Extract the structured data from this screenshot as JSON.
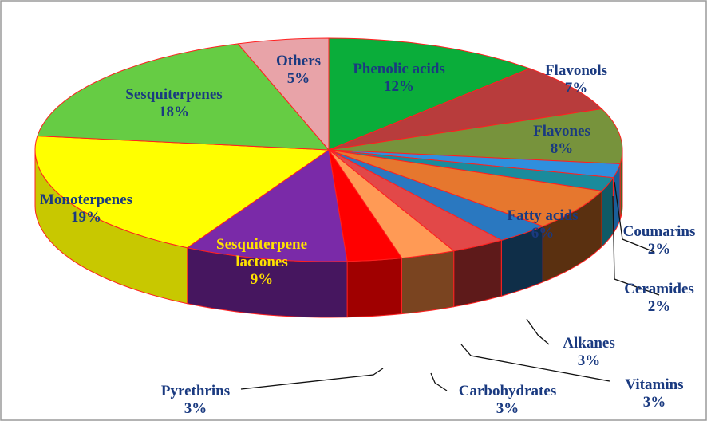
{
  "chart_data": {
    "type": "pie",
    "title": "",
    "style": "3d-exploded-perspective",
    "slices": [
      {
        "label": "Phenolic acids",
        "value": 12,
        "value_label": "12%",
        "color": "#0aad3a",
        "side": "#077a28",
        "label_color": "#1a3a80"
      },
      {
        "label": "Flavonols",
        "value": 7,
        "value_label": "7%",
        "color": "#b83c3c",
        "side": "#7e2424",
        "label_color": "#1a3a80"
      },
      {
        "label": "Flavones",
        "value": 8,
        "value_label": "8%",
        "color": "#77933c",
        "side": "#4e6226",
        "label_color": "#1a3a80"
      },
      {
        "label": "Coumarins",
        "value": 2,
        "value_label": "2%",
        "color": "#2f8fde",
        "side": "#1b5e99",
        "label_color": "#1a3a80"
      },
      {
        "label": "Ceramides",
        "value": 2,
        "value_label": "2%",
        "color": "#1a8b9c",
        "side": "#0f5a66",
        "label_color": "#1a3a80"
      },
      {
        "label": "Fatty acids",
        "value": 6,
        "value_label": "6%",
        "color": "#e6772e",
        "side": "#5a3010",
        "label_color": "#1a3a80"
      },
      {
        "label": "Alkanes",
        "value": 3,
        "value_label": "3%",
        "color": "#2a78c0",
        "side": "#0f2e48",
        "label_color": "#1a3a80"
      },
      {
        "label": "Vitamins",
        "value": 3,
        "value_label": "3%",
        "color": "#e24848",
        "side": "#5e1a1a",
        "label_color": "#1a3a80"
      },
      {
        "label": "Carbohydrates",
        "value": 3,
        "value_label": "3%",
        "color": "#ff9a55",
        "side": "#7a4420",
        "label_color": "#1a3a80"
      },
      {
        "label": "Pyrethrins",
        "value": 3,
        "value_label": "3%",
        "color": "#ff0000",
        "side": "#a00000",
        "label_color": "#1a3a80"
      },
      {
        "label": "Sesquiterpene lactones",
        "value": 9,
        "value_label": "9%",
        "color": "#7a2aa8",
        "side": "#46165f",
        "label_color": "#ffe100"
      },
      {
        "label": "Monoterpenes",
        "value": 19,
        "value_label": "19%",
        "color": "#ffff00",
        "side": "#c8c800",
        "label_color": "#1a3a80"
      },
      {
        "label": "Sesquiterpenes",
        "value": 18,
        "value_label": "18%",
        "color": "#66cc44",
        "side": "#3f8a2a",
        "label_color": "#1a3a80"
      },
      {
        "label": "Others",
        "value": 5,
        "value_label": "5%",
        "color": "#e8a3a8",
        "side": "#b07277",
        "label_color": "#1a3a80"
      }
    ],
    "legend": "none"
  }
}
